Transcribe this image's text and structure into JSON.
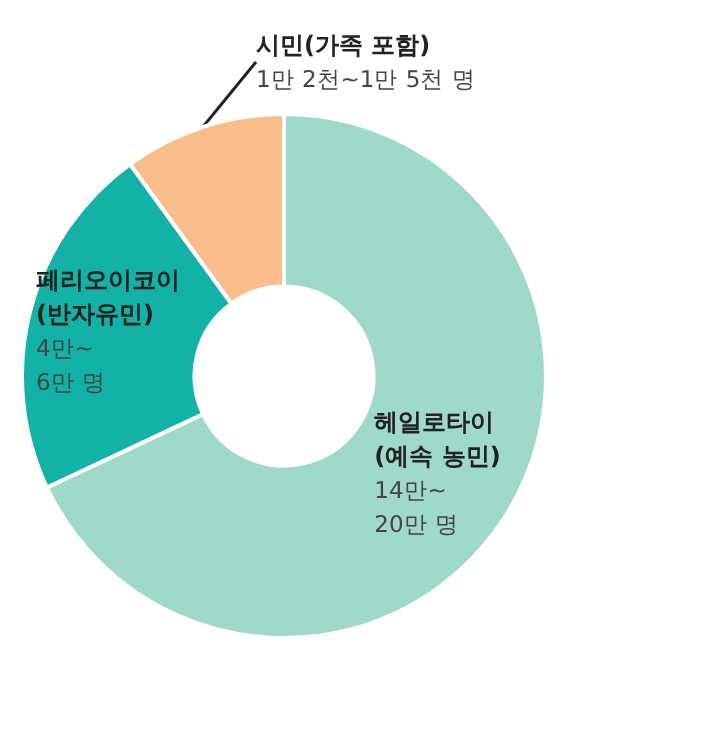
{
  "chart_data": {
    "type": "donut",
    "categories": [
      "헤일로타이\n(예속 농민)",
      "페리오이코이\n(반자유민)",
      "시민(가족 포함)"
    ],
    "values": [
      68,
      22,
      10
    ],
    "colors": [
      "#9fd9ca",
      "#12b2a6",
      "#f8bd8a"
    ],
    "annotations": [
      "14만~\n20만 명",
      "4만~\n6만 명",
      "1만 2천~1만 5천 명"
    ]
  }
}
